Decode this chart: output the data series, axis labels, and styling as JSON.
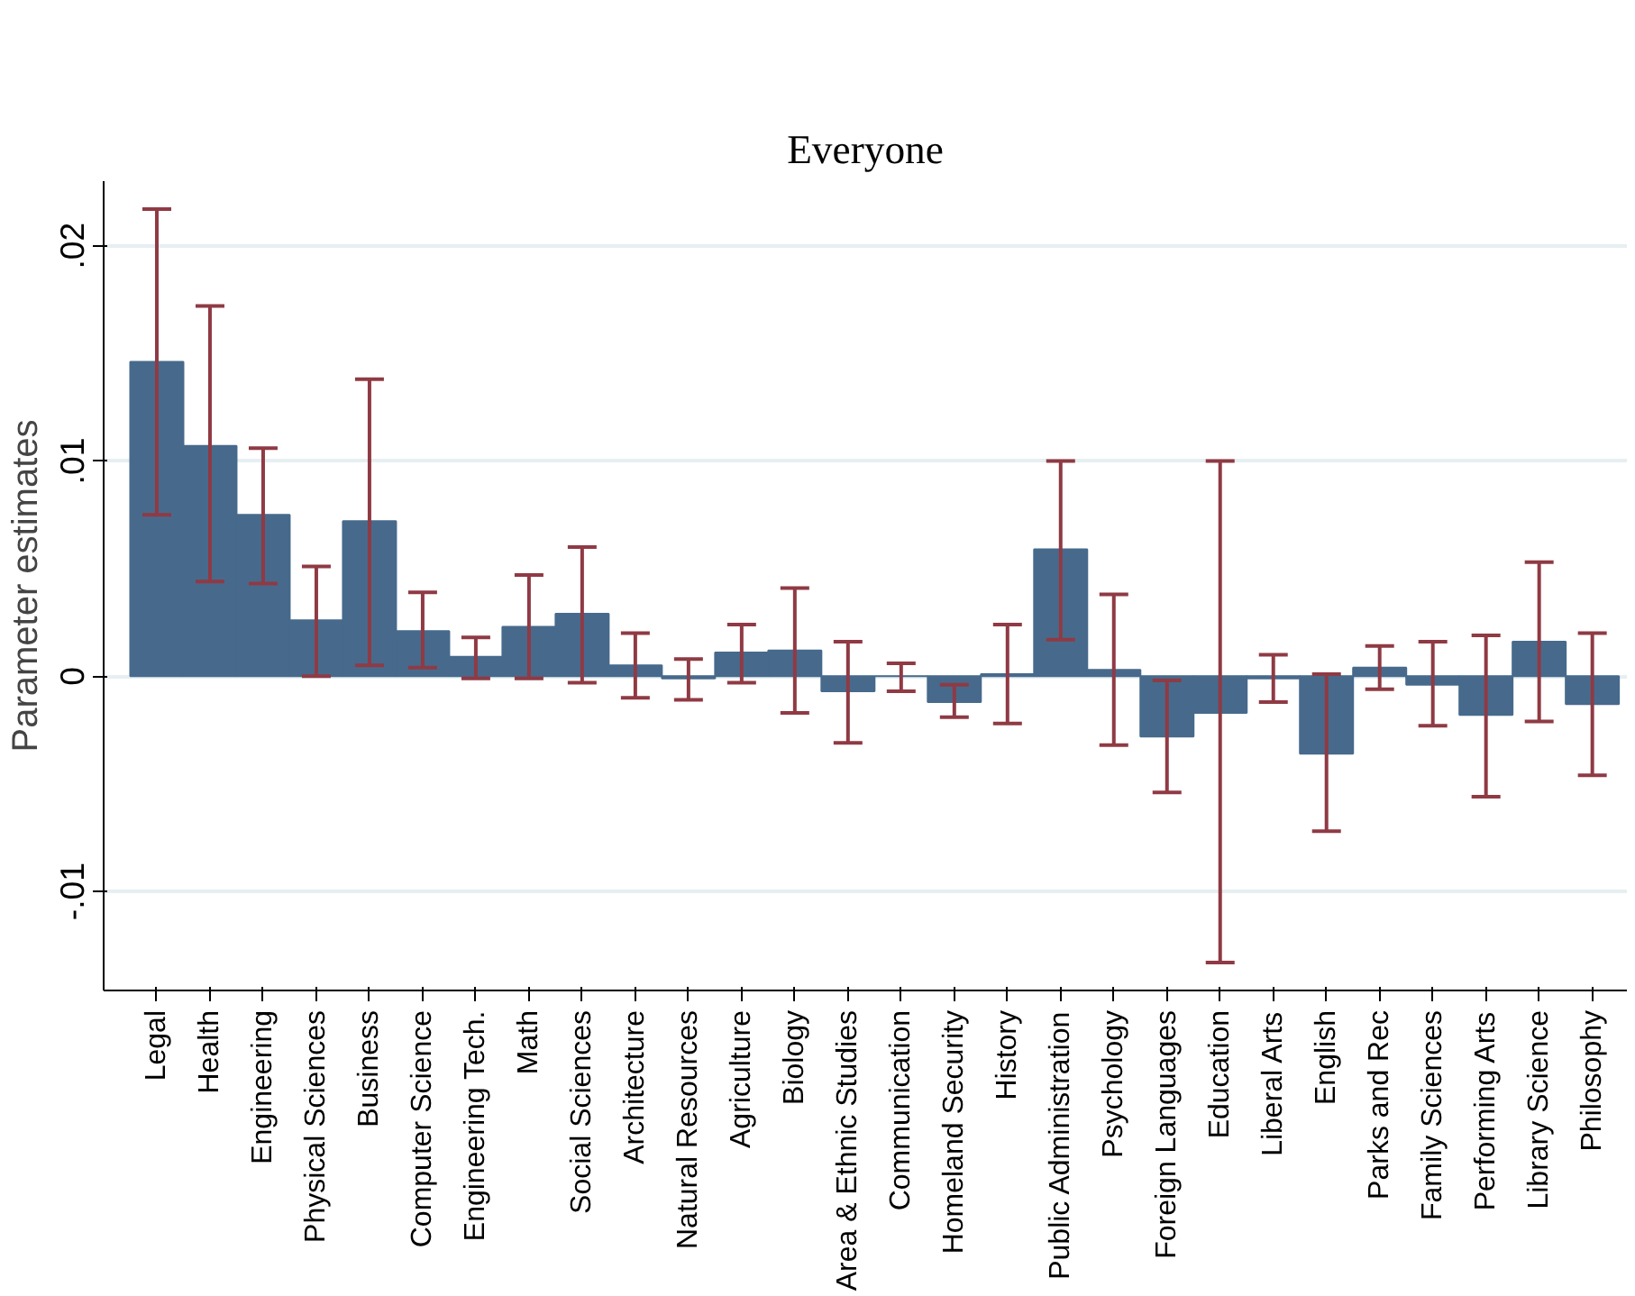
{
  "chart_data": {
    "type": "bar",
    "title": "Everyone",
    "ylabel": "Parameter estimates",
    "categories": [
      "Legal",
      "Health",
      "Engineering",
      "Physical Sciences",
      "Business",
      "Computer Science",
      "Engineering Tech.",
      "Math",
      "Social Sciences",
      "Architecture",
      "Natural Resources",
      "Agriculture",
      "Biology",
      "Area & Ethnic Studies",
      "Communication",
      "Homeland Security",
      "History",
      "Public Administration",
      "Psychology",
      "Foreign Languages",
      "Education",
      "Liberal Arts",
      "English",
      "Parks and Rec",
      "Family Sciences",
      "Performing Arts",
      "Library Science",
      "Philosophy"
    ],
    "values": [
      0.0146,
      0.0107,
      0.0075,
      0.0026,
      0.0072,
      0.0021,
      0.0009,
      0.0023,
      0.0029,
      0.0005,
      -0.0001,
      0.0011,
      0.0012,
      -0.0007,
      0.0,
      -0.0012,
      0.0001,
      0.0059,
      0.0003,
      -0.0028,
      -0.0017,
      -0.0001,
      -0.0036,
      0.0004,
      -0.0004,
      -0.0018,
      0.0016,
      -0.0013
    ],
    "errors": [
      [
        0.0075,
        0.0217
      ],
      [
        0.0044,
        0.0172
      ],
      [
        0.0043,
        0.0106
      ],
      [
        0.0,
        0.0051
      ],
      [
        0.0005,
        0.0138
      ],
      [
        0.0004,
        0.0039
      ],
      [
        -0.0001,
        0.0018
      ],
      [
        -0.0001,
        0.0047
      ],
      [
        -0.0003,
        0.006
      ],
      [
        -0.001,
        0.002
      ],
      [
        -0.0011,
        0.0008
      ],
      [
        -0.0003,
        0.0024
      ],
      [
        -0.0017,
        0.0041
      ],
      [
        -0.0031,
        0.0016
      ],
      [
        -0.0007,
        0.0006
      ],
      [
        -0.0019,
        -0.0004
      ],
      [
        -0.0022,
        0.0024
      ],
      [
        0.0017,
        0.01
      ],
      [
        -0.0032,
        0.0038
      ],
      [
        -0.0054,
        -0.0002
      ],
      [
        -0.0133,
        0.01
      ],
      [
        -0.0012,
        0.001
      ],
      [
        -0.0072,
        0.0001
      ],
      [
        -0.0006,
        0.0014
      ],
      [
        -0.0023,
        0.0016
      ],
      [
        -0.0056,
        0.0019
      ],
      [
        -0.0021,
        0.0053
      ],
      [
        -0.0046,
        0.002
      ]
    ],
    "color": "#476a8c",
    "ylim": [
      -0.0146,
      0.023
    ],
    "yticks": [
      {
        "value": -0.01,
        "label": "-.01"
      },
      0,
      {
        "value": 0.01,
        "label": ".01"
      },
      {
        "value": 0.02,
        "label": ".02"
      }
    ],
    "grid": "y"
  }
}
